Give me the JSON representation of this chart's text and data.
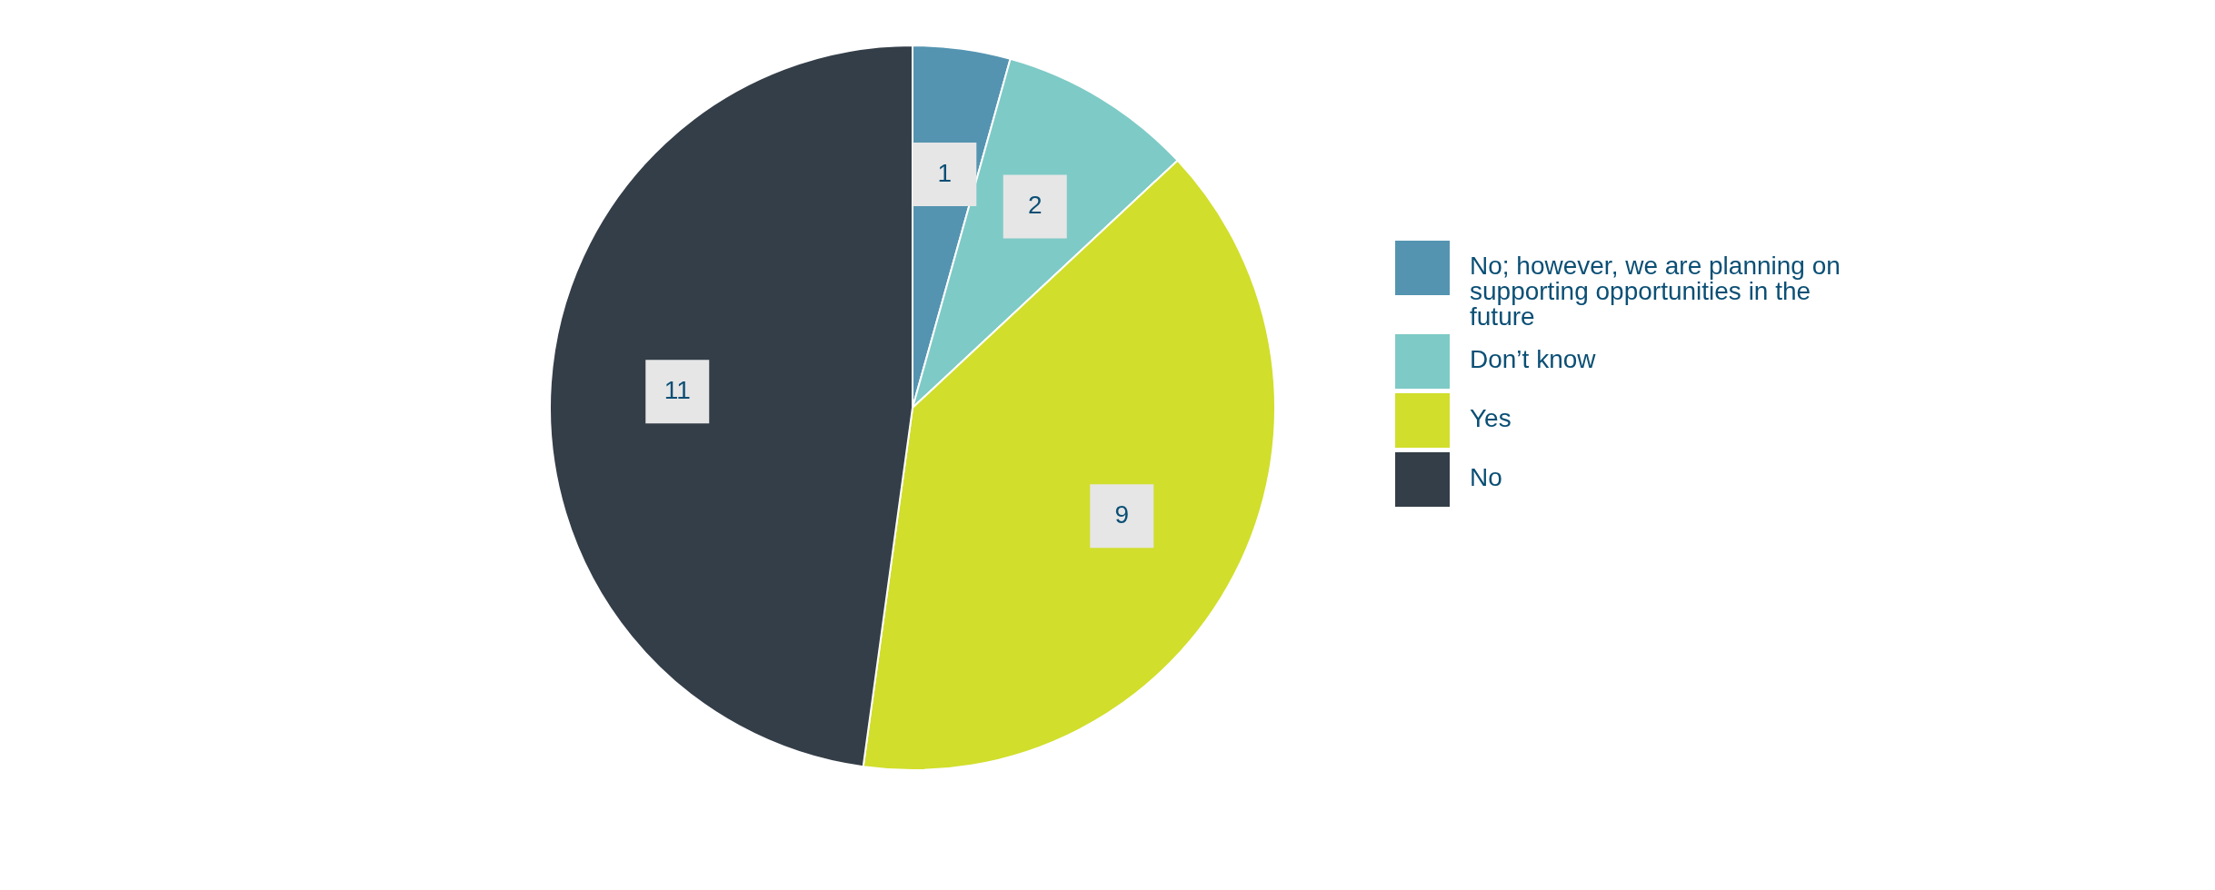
{
  "chart_data": {
    "type": "pie",
    "categories": [
      "No; however, we are planning on supporting opportunities in the future",
      "Don’t know",
      "Yes",
      "No"
    ],
    "values": [
      1,
      2,
      9,
      11
    ],
    "colors": [
      "#5494b1",
      "#7ecac6",
      "#d1de2c",
      "#343e48"
    ],
    "data_labels": true,
    "legend": "right"
  }
}
